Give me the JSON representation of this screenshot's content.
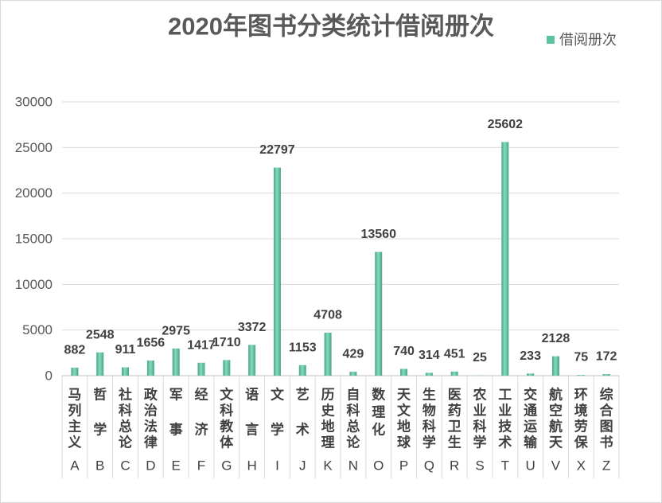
{
  "chart_data": {
    "type": "bar",
    "title": "2020年图书分类统计借阅册次",
    "categories": [
      "A",
      "B",
      "C",
      "D",
      "E",
      "F",
      "G",
      "H",
      "I",
      "J",
      "K",
      "N",
      "O",
      "P",
      "Q",
      "R",
      "S",
      "T",
      "U",
      "V",
      "X",
      "Z"
    ],
    "category_names": [
      "马列主义",
      "哲 学",
      "社科总论",
      "政治法律",
      "军 事",
      "经 济",
      "文科教体",
      "语 言",
      "文 学",
      "艺 术",
      "历史地理",
      "自科总论",
      "数理化",
      "天文地球",
      "生物科学",
      "医药卫生",
      "农业科学",
      "工业技术",
      "交通运输",
      "航空航天",
      "环境劳保",
      "综合图书"
    ],
    "series": [
      {
        "name": "借阅册次",
        "values": [
          882,
          2548,
          911,
          1656,
          2975,
          1417,
          1710,
          3372,
          22797,
          1153,
          4708,
          429,
          13560,
          740,
          314,
          451,
          25,
          25602,
          233,
          2128,
          75,
          172
        ]
      }
    ],
    "ylim": [
      0,
      30000
    ],
    "yticks": [
      0,
      5000,
      10000,
      15000,
      20000,
      25000,
      30000
    ],
    "grid": true,
    "legend": "top-right",
    "data_labels": true,
    "colors": {
      "bar": "#5CC3A0",
      "bar_light": "#86DABD",
      "bar_dark": "#46A785",
      "grid": "#D9D9D9",
      "axis": "#BFBFBF",
      "border": "#D9D9D9"
    }
  }
}
